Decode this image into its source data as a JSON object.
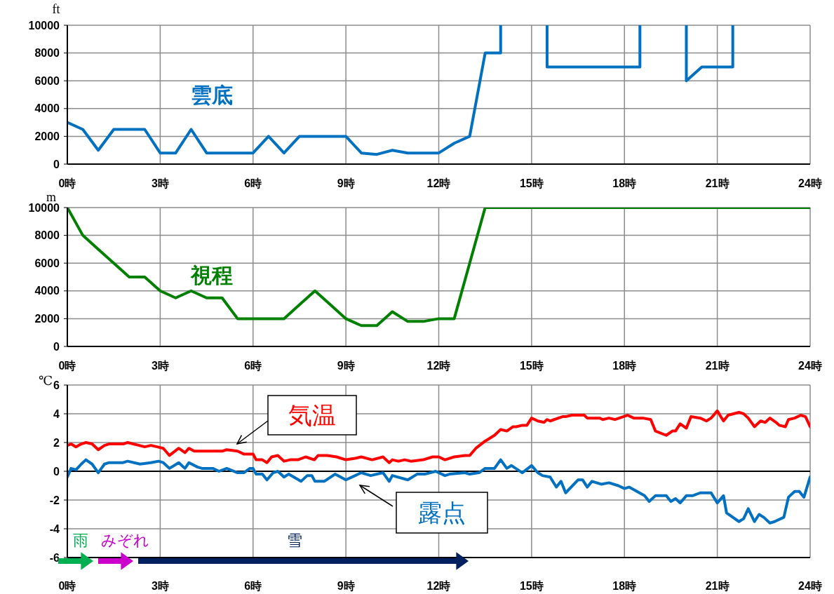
{
  "chart_data": [
    {
      "type": "line",
      "ylabel": "ft",
      "xlim": [
        0,
        24
      ],
      "xticks": [
        {
          "value": 0,
          "label": "0時"
        },
        {
          "value": 3,
          "label": "3時"
        },
        {
          "value": 6,
          "label": "6時"
        },
        {
          "value": 9,
          "label": "9時"
        },
        {
          "value": 12,
          "label": "12時"
        },
        {
          "value": 15,
          "label": "15時"
        },
        {
          "value": 18,
          "label": "18時"
        },
        {
          "value": 21,
          "label": "21時"
        },
        {
          "value": 24,
          "label": "24時"
        }
      ],
      "ylim": [
        0,
        10000
      ],
      "yticks": [
        0,
        2000,
        4000,
        6000,
        8000,
        10000
      ],
      "grid": true,
      "legend": false,
      "series": [
        {
          "name": "雲底",
          "color": "#0070c0",
          "x": [
            0,
            0.5,
            1,
            1.5,
            2,
            2.5,
            3,
            3.5,
            4,
            4.5,
            5,
            5.5,
            6,
            6.5,
            7,
            7.5,
            8,
            8.5,
            9,
            9.5,
            10,
            10.5,
            11,
            11.5,
            12,
            12.5,
            13,
            13.5,
            14,
            14,
            14.5,
            15,
            15.5,
            15.5,
            16,
            16.5,
            17,
            17.5,
            18,
            18.5,
            18.5,
            19,
            19.5,
            20,
            20,
            20.5,
            21,
            21.5,
            21.5
          ],
          "values": [
            3000,
            2500,
            1000,
            2500,
            2500,
            2500,
            800,
            800,
            2500,
            800,
            800,
            800,
            800,
            2000,
            800,
            2000,
            2000,
            2000,
            2000,
            800,
            700,
            1000,
            800,
            800,
            800,
            1500,
            2000,
            8000,
            8000,
            10000,
            null,
            null,
            10000,
            7000,
            7000,
            7000,
            7000,
            7000,
            7000,
            7000,
            10000,
            null,
            null,
            10000,
            6000,
            7000,
            7000,
            7000,
            10000
          ]
        }
      ]
    },
    {
      "type": "line",
      "ylabel": "m",
      "xlim": [
        0,
        24
      ],
      "xticks": [
        {
          "value": 0,
          "label": "0時"
        },
        {
          "value": 3,
          "label": "3時"
        },
        {
          "value": 6,
          "label": "6時"
        },
        {
          "value": 9,
          "label": "9時"
        },
        {
          "value": 12,
          "label": "12時"
        },
        {
          "value": 15,
          "label": "15時"
        },
        {
          "value": 18,
          "label": "18時"
        },
        {
          "value": 21,
          "label": "21時"
        },
        {
          "value": 24,
          "label": "24時"
        }
      ],
      "ylim": [
        0,
        10000
      ],
      "yticks": [
        0,
        2000,
        4000,
        6000,
        8000,
        10000
      ],
      "grid": true,
      "legend": false,
      "series": [
        {
          "name": "視程",
          "color": "#008000",
          "x": [
            0,
            0.5,
            1,
            1.5,
            2,
            2.5,
            3,
            3.5,
            4,
            4.5,
            5,
            5.5,
            6,
            6.5,
            7,
            7.5,
            8,
            8.5,
            9,
            9.5,
            10,
            10.5,
            11,
            11.5,
            12,
            12.5,
            13,
            13.5,
            14,
            14.5,
            15,
            15.5,
            16,
            16.5,
            17,
            17.5,
            18,
            18.5,
            19,
            19.5,
            20,
            20.5,
            21,
            21.5,
            22,
            22.5,
            23,
            23.5,
            24
          ],
          "values": [
            10000,
            8000,
            7000,
            6000,
            5000,
            5000,
            4000,
            3500,
            4000,
            3500,
            3500,
            2000,
            2000,
            2000,
            2000,
            3000,
            4000,
            3000,
            2000,
            1500,
            1500,
            2500,
            1800,
            1800,
            2000,
            2000,
            6000,
            10000,
            10000,
            10000,
            10000,
            10000,
            10000,
            10000,
            10000,
            10000,
            10000,
            10000,
            10000,
            10000,
            10000,
            10000,
            10000,
            10000,
            10000,
            10000,
            10000,
            10000,
            10000
          ]
        }
      ]
    },
    {
      "type": "line",
      "ylabel": "℃",
      "xlim": [
        0,
        24
      ],
      "xticks": [
        {
          "value": 0,
          "label": "0時"
        },
        {
          "value": 3,
          "label": "3時"
        },
        {
          "value": 6,
          "label": "6時"
        },
        {
          "value": 9,
          "label": "9時"
        },
        {
          "value": 12,
          "label": "12時"
        },
        {
          "value": 15,
          "label": "15時"
        },
        {
          "value": 18,
          "label": "18時"
        },
        {
          "value": 21,
          "label": "21時"
        },
        {
          "value": 24,
          "label": "24時"
        }
      ],
      "ylim": [
        -6,
        6
      ],
      "yticks": [
        -6,
        -4,
        -2,
        0,
        2,
        4,
        6
      ],
      "grid": true,
      "legend": false,
      "ref_lines": [
        {
          "axis": "y",
          "value": 0,
          "color": "#000000"
        }
      ],
      "annotations": [
        "雨",
        "みぞれ",
        "雪"
      ],
      "series": [
        {
          "name": "気温",
          "color": "#ff0000",
          "x": [
            0,
            0.12,
            0.28,
            0.45,
            0.6,
            0.8,
            1.0,
            1.2,
            1.35,
            1.8,
            1.95,
            2.5,
            2.7,
            2.9,
            3.1,
            3.3,
            3.6,
            3.8,
            3.93,
            4.1,
            5.0,
            5.15,
            5.5,
            5.7,
            6.0,
            6.1,
            6.3,
            6.45,
            6.6,
            6.8,
            7.0,
            7.2,
            7.45,
            7.7,
            7.98,
            8.1,
            8.4,
            8.7,
            9.0,
            9.3,
            9.5,
            9.85,
            10.2,
            10.4,
            10.5,
            10.7,
            10.9,
            11.1,
            11.5,
            11.8,
            12.0,
            12.2,
            12.5,
            12.85,
            13.0,
            13.2,
            13.5,
            13.8,
            14.0,
            14.2,
            14.4,
            14.5,
            14.7,
            14.85,
            15.0,
            15.2,
            15.4,
            15.5,
            15.6,
            16.0,
            16.1,
            16.3,
            16.7,
            16.8,
            17.2,
            17.3,
            17.5,
            17.7,
            18.1,
            18.3,
            18.6,
            18.85,
            19.0,
            19.35,
            19.55,
            19.65,
            19.8,
            20.0,
            20.15,
            20.45,
            20.65,
            20.8,
            21.0,
            21.2,
            21.35,
            21.7,
            21.85,
            22.0,
            22.2,
            22.4,
            22.55,
            22.7,
            22.9,
            23.0,
            23.2,
            23.3,
            23.5,
            23.7,
            23.85,
            24.0
          ],
          "values": [
            1.8,
            1.9,
            1.7,
            1.9,
            2.0,
            1.9,
            1.5,
            1.8,
            1.9,
            1.9,
            2.0,
            1.7,
            1.8,
            1.7,
            1.6,
            1.1,
            1.6,
            1.3,
            1.6,
            1.4,
            1.4,
            1.5,
            1.4,
            1.2,
            1.2,
            0.8,
            0.8,
            0.6,
            1.0,
            1.1,
            0.7,
            0.8,
            0.8,
            1.0,
            0.8,
            1.1,
            1.1,
            1.0,
            0.8,
            0.9,
            1.0,
            0.8,
            1.0,
            0.6,
            0.8,
            0.7,
            0.8,
            0.7,
            0.8,
            1.0,
            1.0,
            0.8,
            1.0,
            1.1,
            1.1,
            1.6,
            2.1,
            2.5,
            2.9,
            2.8,
            3.1,
            3.1,
            3.2,
            3.2,
            3.7,
            3.5,
            3.4,
            3.6,
            3.5,
            3.8,
            3.8,
            3.9,
            3.9,
            3.7,
            3.7,
            3.6,
            3.7,
            3.6,
            3.9,
            3.7,
            3.7,
            3.6,
            2.8,
            2.5,
            2.8,
            2.8,
            3.3,
            3.0,
            3.8,
            3.7,
            3.5,
            3.7,
            4.2,
            3.5,
            3.9,
            4.1,
            4.0,
            3.7,
            3.1,
            3.5,
            3.4,
            3.7,
            3.4,
            3.2,
            3.1,
            3.6,
            3.7,
            3.9,
            3.8,
            3.1
          ]
        },
        {
          "name": "露点",
          "color": "#0070c0",
          "x": [
            0,
            0.12,
            0.28,
            0.45,
            0.6,
            0.8,
            1.0,
            1.2,
            1.35,
            1.8,
            1.95,
            2.35,
            2.7,
            2.95,
            3.1,
            3.3,
            3.6,
            3.8,
            3.93,
            4.2,
            4.35,
            4.7,
            4.9,
            5.15,
            5.5,
            5.7,
            5.9,
            6.0,
            6.1,
            6.3,
            6.45,
            6.65,
            6.8,
            7.0,
            7.15,
            7.55,
            7.75,
            7.9,
            8.0,
            8.3,
            8.65,
            9.0,
            9.3,
            9.5,
            9.8,
            10.2,
            10.4,
            10.5,
            11.0,
            11.3,
            11.55,
            11.9,
            12.2,
            12.35,
            12.85,
            13.0,
            13.3,
            13.5,
            13.8,
            14.0,
            14.2,
            14.35,
            14.7,
            15.0,
            15.2,
            15.35,
            15.6,
            15.8,
            15.95,
            16.1,
            16.5,
            16.65,
            16.8,
            16.95,
            17.25,
            17.5,
            17.8,
            18.0,
            18.15,
            18.65,
            18.8,
            19.0,
            19.35,
            19.5,
            19.65,
            19.8,
            20.0,
            20.2,
            20.45,
            20.8,
            21.0,
            21.2,
            21.3,
            21.7,
            21.85,
            22.0,
            22.2,
            22.35,
            22.5,
            22.7,
            22.85,
            23.15,
            23.3,
            23.5,
            23.65,
            23.8,
            24.0
          ],
          "values": [
            -0.4,
            0.2,
            0.1,
            0.5,
            0.8,
            0.5,
            -0.1,
            0.5,
            0.6,
            0.6,
            0.7,
            0.5,
            0.6,
            0.7,
            0.6,
            0.2,
            0.6,
            0.2,
            0.6,
            0.3,
            0.2,
            0.2,
            0.0,
            0.2,
            -0.1,
            -0.1,
            0.2,
            0.2,
            -0.2,
            -0.2,
            -0.6,
            -0.1,
            0.0,
            -0.4,
            -0.2,
            -0.7,
            -0.3,
            -0.3,
            -0.7,
            -0.7,
            -0.2,
            -0.6,
            -0.3,
            -0.1,
            -0.3,
            -0.1,
            -0.7,
            -0.3,
            -0.6,
            -0.2,
            -0.2,
            0.0,
            -0.3,
            -0.2,
            -0.1,
            -0.2,
            -0.1,
            0.2,
            0.2,
            0.8,
            0.2,
            0.4,
            -0.1,
            0.4,
            -0.1,
            -0.3,
            -0.4,
            -1.1,
            -0.7,
            -1.5,
            -0.6,
            -0.6,
            -1.1,
            -0.7,
            -0.9,
            -0.8,
            -1.0,
            -1.2,
            -1.1,
            -1.7,
            -2.1,
            -1.7,
            -1.7,
            -2.1,
            -1.9,
            -2.2,
            -1.7,
            -1.7,
            -1.5,
            -1.5,
            -2.2,
            -1.7,
            -2.9,
            -3.5,
            -3.3,
            -2.6,
            -3.5,
            -3.0,
            -3.2,
            -3.6,
            -3.5,
            -3.2,
            -1.8,
            -1.4,
            -1.4,
            -1.8,
            -0.4
          ]
        }
      ]
    }
  ]
}
